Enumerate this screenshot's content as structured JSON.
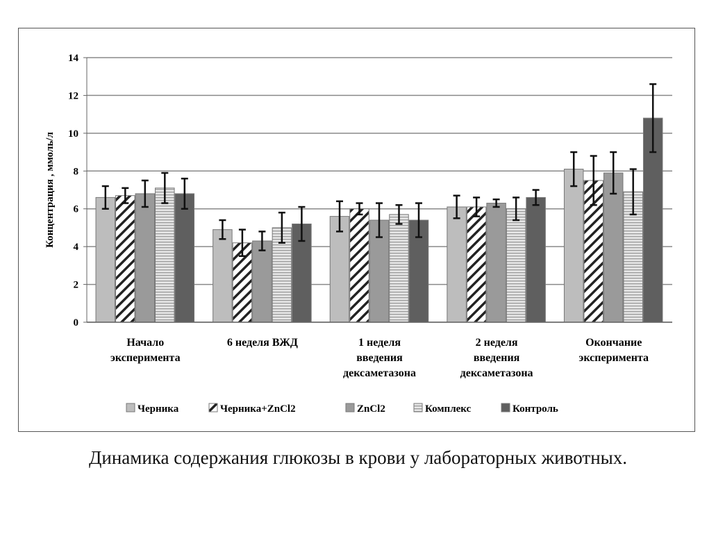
{
  "chart_data": {
    "type": "bar",
    "title": "",
    "ylabel": "Концентрация , ммоль/л",
    "xlabel": "",
    "ylim": [
      0,
      14
    ],
    "yticks": [
      "0",
      "2",
      "4",
      "6",
      "8",
      "10",
      "12",
      "14"
    ],
    "grid": true,
    "legend_position": "bottom",
    "categories": [
      [
        "Начало",
        "эксперимента"
      ],
      [
        "6 неделя ВЖД"
      ],
      [
        "1 неделя",
        "введения",
        "дексаметазона"
      ],
      [
        "2 неделя",
        "введения",
        "дексаметазона"
      ],
      [
        "Окончание",
        "эксперимента"
      ]
    ],
    "series": [
      {
        "name": "Черника",
        "fill": "#bdbdbd",
        "pattern": "solid",
        "values": [
          6.6,
          4.9,
          5.6,
          6.1,
          8.1
        ],
        "errors": [
          0.6,
          0.5,
          0.8,
          0.6,
          0.9
        ]
      },
      {
        "name": "Черника+ZnCl2",
        "fill": "#ffffff",
        "pattern": "diagonal",
        "values": [
          6.7,
          4.2,
          6.0,
          6.1,
          7.5
        ],
        "errors": [
          0.4,
          0.7,
          0.3,
          0.5,
          1.3
        ]
      },
      {
        "name": "ZnCl2",
        "fill": "#9a9a9a",
        "pattern": "solid",
        "values": [
          6.8,
          4.3,
          5.4,
          6.3,
          7.9
        ],
        "errors": [
          0.7,
          0.5,
          0.9,
          0.2,
          1.1
        ]
      },
      {
        "name": "Комплекс",
        "fill": "#d8d8d8",
        "pattern": "horizontal",
        "values": [
          7.1,
          5.0,
          5.7,
          6.0,
          6.9
        ],
        "errors": [
          0.8,
          0.8,
          0.5,
          0.6,
          1.2
        ]
      },
      {
        "name": "Контроль",
        "fill": "#5f5f5f",
        "pattern": "solid",
        "values": [
          6.8,
          5.2,
          5.4,
          6.6,
          10.8
        ],
        "errors": [
          0.8,
          0.9,
          0.9,
          0.4,
          1.8
        ]
      }
    ]
  },
  "caption": "Динамика содержания глюкозы в крови у лабораторных животных."
}
